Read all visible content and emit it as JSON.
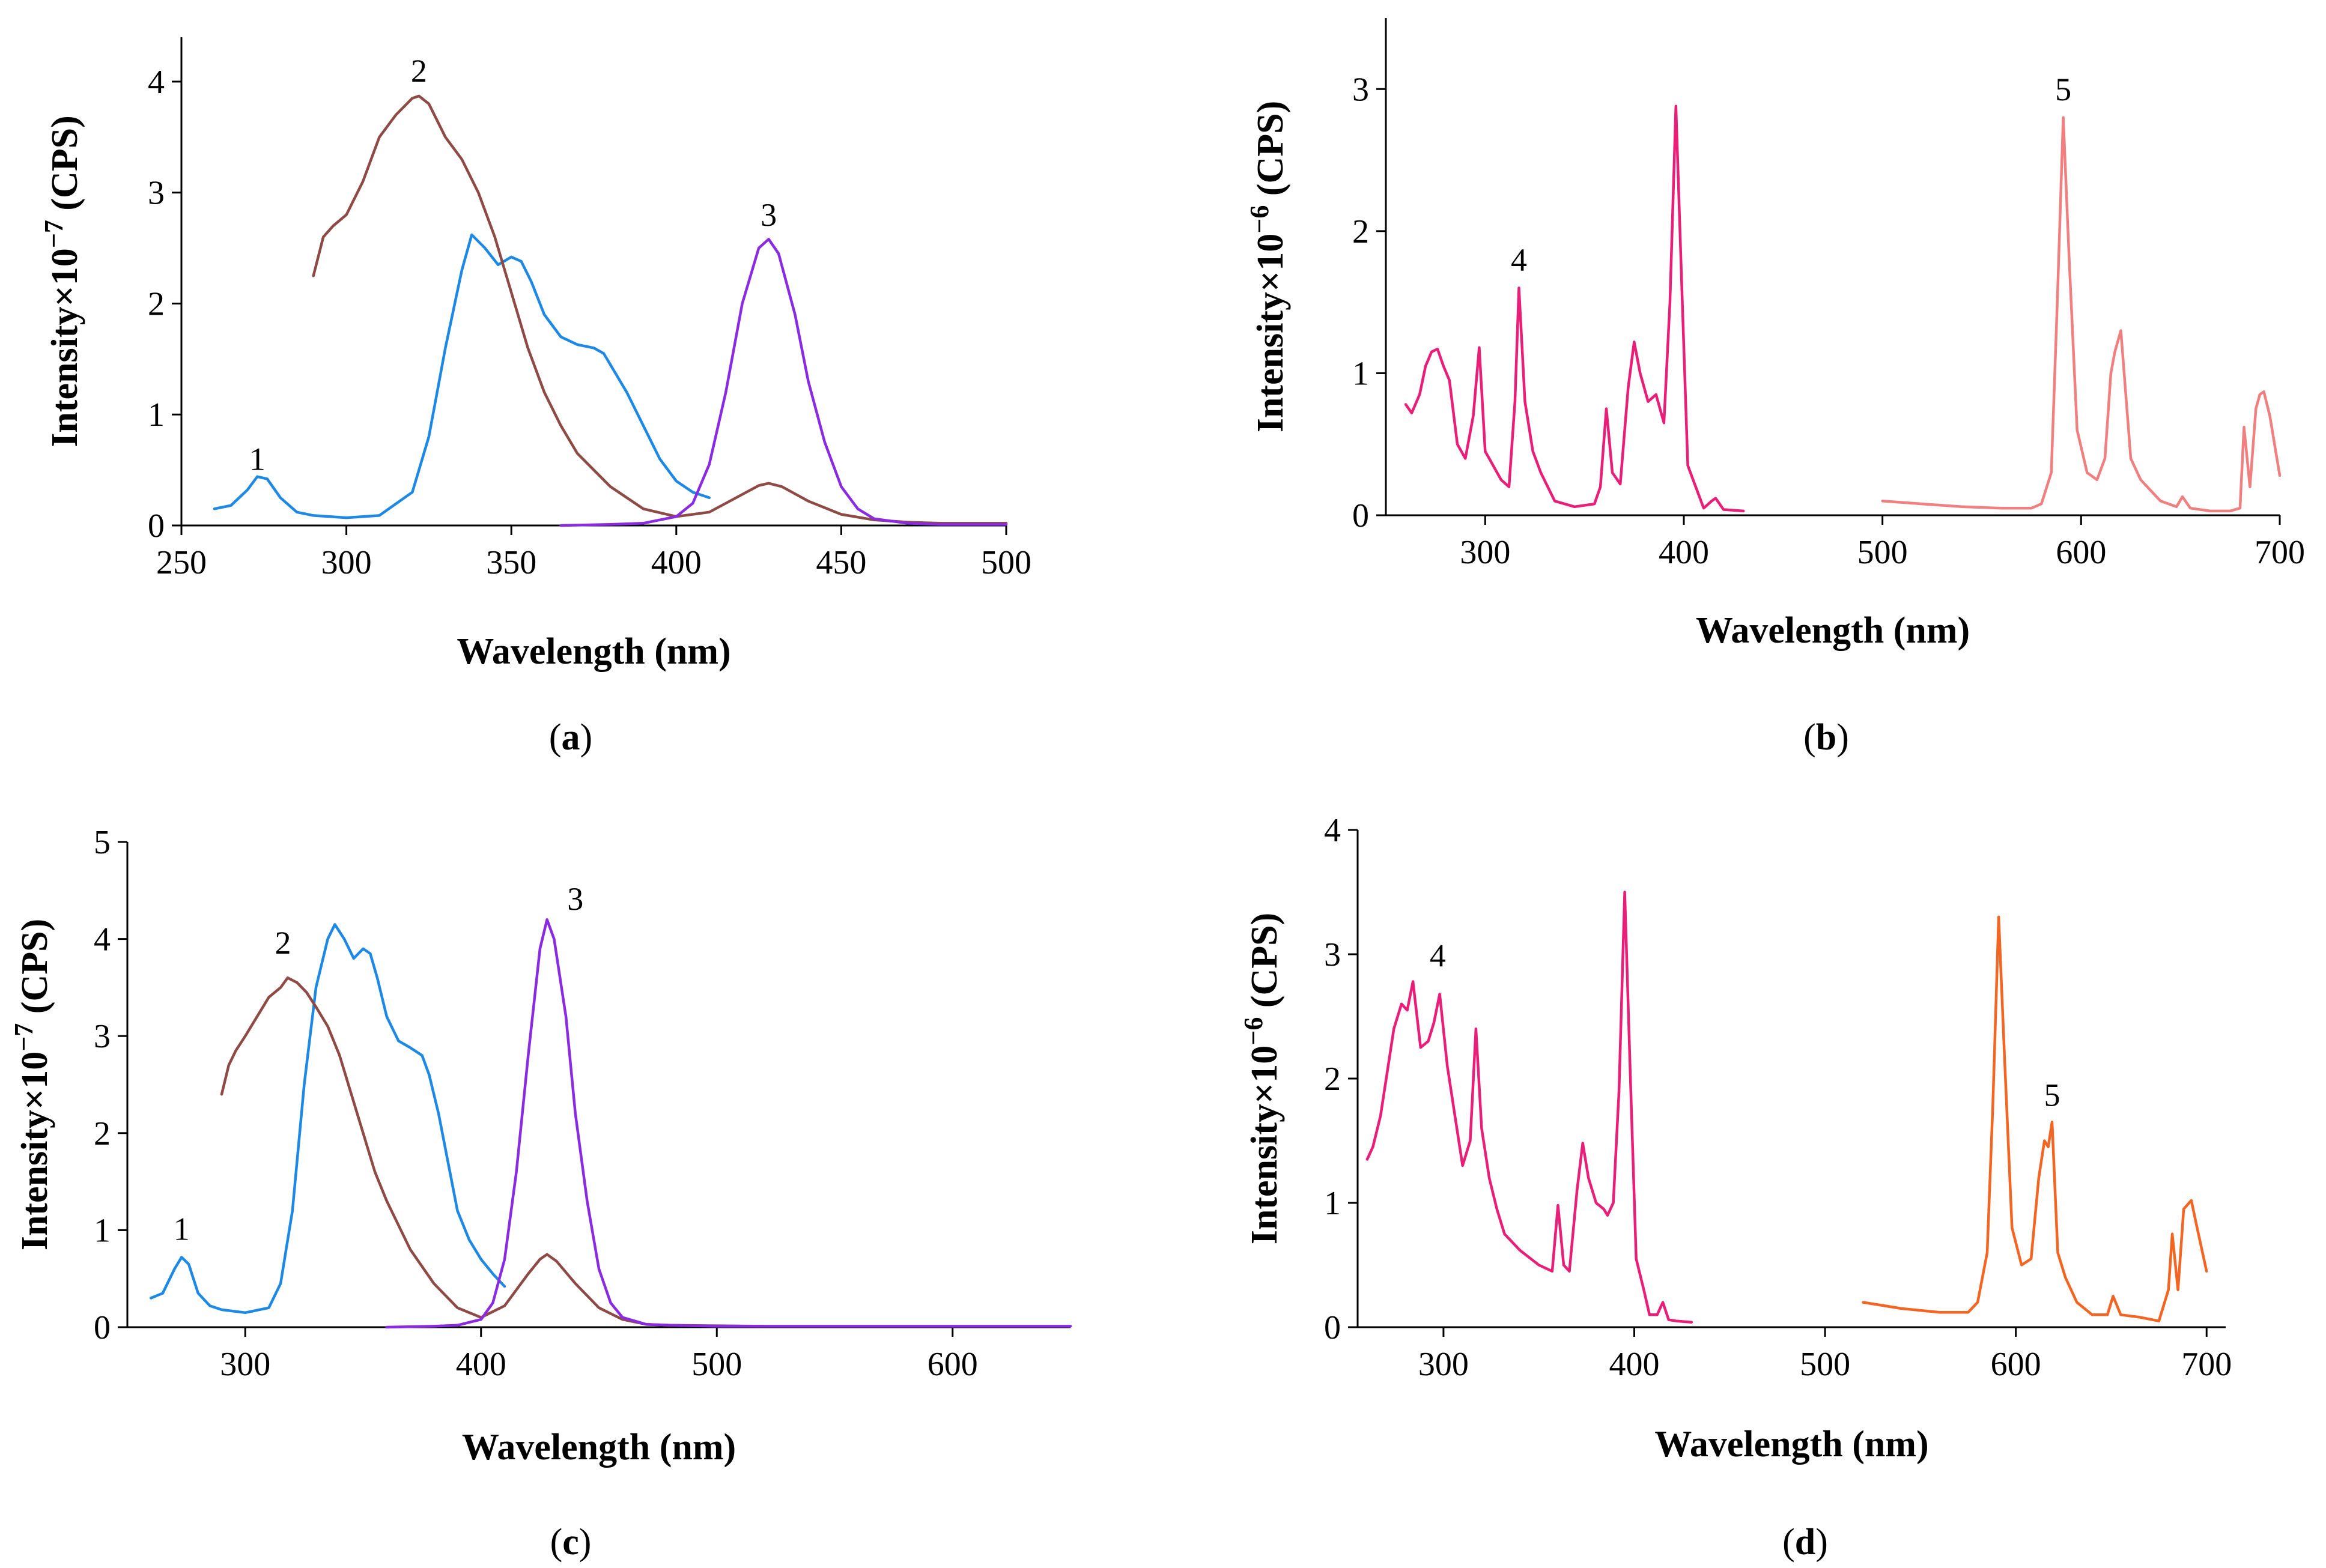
{
  "chart_data": [
    {
      "id": "a",
      "type": "line",
      "caption_letter": "a",
      "xlabel": "Wavelength (nm)",
      "ylabel_base": "Intensity×10",
      "ylabel_exp": "−7",
      "ylabel_unit": " (CPS)",
      "xlim": [
        250,
        500
      ],
      "ylim": [
        0,
        4.4
      ],
      "xticks": [
        250,
        300,
        350,
        400,
        450,
        500
      ],
      "yticks": [
        0,
        1,
        2,
        3,
        4
      ],
      "series": [
        {
          "name": "1",
          "color": "#1E88E5",
          "x": [
            260,
            265,
            270,
            273,
            276,
            280,
            285,
            290,
            300,
            310,
            320,
            325,
            330,
            335,
            338,
            342,
            346,
            350,
            353,
            356,
            360,
            365,
            370,
            375,
            378,
            380,
            385,
            390,
            395,
            400,
            405,
            410
          ],
          "y": [
            0.15,
            0.18,
            0.32,
            0.44,
            0.42,
            0.25,
            0.12,
            0.09,
            0.07,
            0.09,
            0.3,
            0.8,
            1.6,
            2.3,
            2.62,
            2.5,
            2.35,
            2.42,
            2.38,
            2.2,
            1.9,
            1.7,
            1.63,
            1.6,
            1.55,
            1.45,
            1.2,
            0.9,
            0.6,
            0.4,
            0.3,
            0.25
          ]
        },
        {
          "name": "2",
          "color": "#8E4A45",
          "x": [
            290,
            293,
            296,
            300,
            305,
            310,
            315,
            320,
            322,
            325,
            330,
            335,
            340,
            345,
            350,
            355,
            360,
            365,
            370,
            380,
            390,
            400,
            410,
            420,
            425,
            428,
            432,
            440,
            450,
            460,
            470,
            480,
            500
          ],
          "y": [
            2.25,
            2.6,
            2.7,
            2.8,
            3.1,
            3.5,
            3.7,
            3.85,
            3.87,
            3.8,
            3.5,
            3.3,
            3.0,
            2.6,
            2.1,
            1.6,
            1.2,
            0.9,
            0.65,
            0.35,
            0.15,
            0.08,
            0.12,
            0.28,
            0.36,
            0.38,
            0.35,
            0.22,
            0.1,
            0.05,
            0.03,
            0.02,
            0.02
          ]
        },
        {
          "name": "3",
          "color": "#8A2BE2",
          "x": [
            365,
            380,
            390,
            400,
            405,
            410,
            415,
            420,
            425,
            428,
            431,
            436,
            440,
            445,
            450,
            455,
            460,
            470,
            480,
            500
          ],
          "y": [
            0.0,
            0.01,
            0.02,
            0.08,
            0.2,
            0.55,
            1.2,
            2.0,
            2.5,
            2.58,
            2.45,
            1.9,
            1.3,
            0.75,
            0.35,
            0.15,
            0.06,
            0.02,
            0.01,
            0.01
          ]
        }
      ],
      "annotations": [
        {
          "text": "1",
          "x": 273,
          "y": 0.5
        },
        {
          "text": "2",
          "x": 322,
          "y": 4.0
        },
        {
          "text": "3",
          "x": 428,
          "y": 2.7
        }
      ]
    },
    {
      "id": "b",
      "type": "line",
      "caption_letter": "b",
      "xlabel": "Wavelength (nm)",
      "ylabel_base": "Intensity×10",
      "ylabel_exp": "−6",
      "ylabel_unit": " (CPS)",
      "xlim": [
        250,
        700
      ],
      "ylim": [
        0,
        3.5
      ],
      "xticks": [
        300,
        400,
        500,
        600,
        700
      ],
      "yticks": [
        0,
        1,
        2,
        3
      ],
      "series": [
        {
          "name": "4",
          "color": "#E91E78",
          "x": [
            260,
            263,
            267,
            270,
            273,
            276,
            279,
            282,
            286,
            290,
            294,
            297,
            300,
            304,
            308,
            312,
            315,
            317,
            320,
            324,
            328,
            335,
            345,
            355,
            358,
            361,
            364,
            368,
            372,
            375,
            378,
            382,
            386,
            390,
            393,
            396,
            399,
            402,
            406,
            410,
            414,
            416,
            420,
            430
          ],
          "y": [
            0.78,
            0.72,
            0.85,
            1.05,
            1.15,
            1.17,
            1.05,
            0.95,
            0.5,
            0.4,
            0.7,
            1.18,
            0.45,
            0.35,
            0.25,
            0.2,
            0.8,
            1.6,
            0.8,
            0.45,
            0.3,
            0.1,
            0.06,
            0.08,
            0.2,
            0.75,
            0.3,
            0.22,
            0.9,
            1.22,
            1.0,
            0.8,
            0.85,
            0.65,
            1.5,
            2.88,
            1.6,
            0.35,
            0.2,
            0.05,
            0.1,
            0.12,
            0.04,
            0.03
          ]
        },
        {
          "name": "5",
          "color": "#F08080",
          "x": [
            500,
            520,
            540,
            560,
            575,
            580,
            585,
            588,
            591,
            594,
            598,
            603,
            608,
            612,
            615,
            617,
            620,
            625,
            630,
            640,
            648,
            651,
            655,
            665,
            675,
            680,
            682,
            685,
            688,
            690,
            692,
            695,
            700
          ],
          "y": [
            0.1,
            0.08,
            0.06,
            0.05,
            0.05,
            0.08,
            0.3,
            1.5,
            2.8,
            1.8,
            0.6,
            0.3,
            0.25,
            0.4,
            1.0,
            1.15,
            1.3,
            0.4,
            0.25,
            0.1,
            0.06,
            0.13,
            0.05,
            0.03,
            0.03,
            0.05,
            0.62,
            0.2,
            0.75,
            0.85,
            0.87,
            0.7,
            0.28
          ]
        }
      ],
      "annotations": [
        {
          "text": "4",
          "x": 317,
          "y": 1.72
        },
        {
          "text": "5",
          "x": 591,
          "y": 2.92
        }
      ]
    },
    {
      "id": "c",
      "type": "line",
      "caption_letter": "c",
      "xlabel": "Wavelength (nm)",
      "ylabel_base": "Intensity×10",
      "ylabel_exp": "−7",
      "ylabel_unit": " (CPS)",
      "xlim": [
        250,
        650
      ],
      "ylim": [
        0,
        5
      ],
      "xticks": [
        300,
        400,
        500,
        600
      ],
      "yticks": [
        0,
        1,
        2,
        3,
        4,
        5
      ],
      "series": [
        {
          "name": "1",
          "color": "#1E88E5",
          "x": [
            260,
            265,
            270,
            273,
            276,
            280,
            285,
            290,
            300,
            310,
            315,
            320,
            325,
            330,
            335,
            338,
            342,
            346,
            350,
            353,
            356,
            360,
            365,
            370,
            375,
            378,
            382,
            386,
            390,
            395,
            400,
            405,
            410
          ],
          "y": [
            0.3,
            0.35,
            0.6,
            0.72,
            0.65,
            0.35,
            0.22,
            0.18,
            0.15,
            0.2,
            0.45,
            1.2,
            2.5,
            3.5,
            4.0,
            4.15,
            4.0,
            3.8,
            3.9,
            3.85,
            3.6,
            3.2,
            2.95,
            2.88,
            2.8,
            2.6,
            2.2,
            1.7,
            1.2,
            0.9,
            0.7,
            0.55,
            0.42
          ]
        },
        {
          "name": "2",
          "color": "#8E4A45",
          "x": [
            290,
            293,
            296,
            300,
            305,
            310,
            315,
            318,
            322,
            326,
            330,
            335,
            340,
            345,
            350,
            355,
            360,
            370,
            380,
            390,
            400,
            410,
            420,
            425,
            428,
            432,
            440,
            450,
            460,
            470,
            480,
            520
          ],
          "y": [
            2.4,
            2.7,
            2.85,
            3.0,
            3.2,
            3.4,
            3.5,
            3.6,
            3.55,
            3.45,
            3.3,
            3.1,
            2.8,
            2.4,
            2.0,
            1.6,
            1.3,
            0.8,
            0.45,
            0.2,
            0.1,
            0.22,
            0.55,
            0.7,
            0.75,
            0.68,
            0.45,
            0.2,
            0.08,
            0.03,
            0.02,
            0.01
          ]
        },
        {
          "name": "3",
          "color": "#8A2BE2",
          "x": [
            360,
            380,
            390,
            400,
            405,
            410,
            415,
            420,
            425,
            428,
            431,
            436,
            440,
            445,
            450,
            455,
            460,
            470,
            480,
            500,
            550,
            600,
            650
          ],
          "y": [
            0.0,
            0.01,
            0.02,
            0.08,
            0.25,
            0.7,
            1.6,
            2.8,
            3.9,
            4.2,
            4.0,
            3.2,
            2.2,
            1.3,
            0.6,
            0.25,
            0.1,
            0.03,
            0.02,
            0.01,
            0.01,
            0.01,
            0.01
          ]
        }
      ],
      "annotations": [
        {
          "text": "1",
          "x": 273,
          "y": 0.9
        },
        {
          "text": "2",
          "x": 316,
          "y": 3.85
        },
        {
          "text": "3",
          "x": 440,
          "y": 4.3
        }
      ]
    },
    {
      "id": "d",
      "type": "line",
      "caption_letter": "d",
      "xlabel": "Wavelength (nm)",
      "ylabel_base": "Intensity×10",
      "ylabel_exp": "−6",
      "ylabel_unit": " (CPS)",
      "xlim": [
        255,
        710
      ],
      "ylim": [
        0,
        4
      ],
      "xticks": [
        300,
        400,
        500,
        600,
        700
      ],
      "yticks": [
        0,
        1,
        2,
        3,
        4
      ],
      "series": [
        {
          "name": "4",
          "color": "#E91E78",
          "x": [
            260,
            263,
            267,
            270,
            274,
            278,
            281,
            284,
            288,
            292,
            295,
            298,
            302,
            306,
            310,
            314,
            317,
            320,
            324,
            328,
            332,
            340,
            350,
            357,
            360,
            363,
            366,
            370,
            373,
            376,
            380,
            384,
            386,
            389,
            392,
            395,
            398,
            401,
            405,
            408,
            412,
            415,
            418,
            422,
            430
          ],
          "y": [
            1.35,
            1.45,
            1.7,
            2.0,
            2.4,
            2.6,
            2.55,
            2.78,
            2.25,
            2.3,
            2.45,
            2.68,
            2.1,
            1.7,
            1.3,
            1.5,
            2.4,
            1.6,
            1.2,
            0.95,
            0.75,
            0.62,
            0.5,
            0.45,
            0.98,
            0.5,
            0.45,
            1.1,
            1.48,
            1.2,
            1.0,
            0.95,
            0.9,
            1.0,
            1.9,
            3.5,
            2.0,
            0.55,
            0.3,
            0.1,
            0.1,
            0.2,
            0.06,
            0.05,
            0.04
          ]
        },
        {
          "name": "5",
          "color": "#F26522",
          "x": [
            520,
            540,
            560,
            575,
            580,
            585,
            588,
            591,
            594,
            598,
            603,
            608,
            612,
            615,
            617,
            619,
            622,
            626,
            632,
            640,
            648,
            651,
            655,
            665,
            675,
            680,
            682,
            685,
            688,
            692,
            695,
            700
          ],
          "y": [
            0.2,
            0.15,
            0.12,
            0.12,
            0.2,
            0.6,
            1.8,
            3.3,
            2.2,
            0.8,
            0.5,
            0.55,
            1.2,
            1.5,
            1.45,
            1.65,
            0.6,
            0.4,
            0.2,
            0.1,
            0.1,
            0.25,
            0.1,
            0.08,
            0.05,
            0.3,
            0.75,
            0.3,
            0.95,
            1.02,
            0.8,
            0.45
          ]
        }
      ],
      "annotations": [
        {
          "text": "4",
          "x": 297,
          "y": 2.9
        },
        {
          "text": "5",
          "x": 619,
          "y": 1.78
        }
      ]
    }
  ]
}
